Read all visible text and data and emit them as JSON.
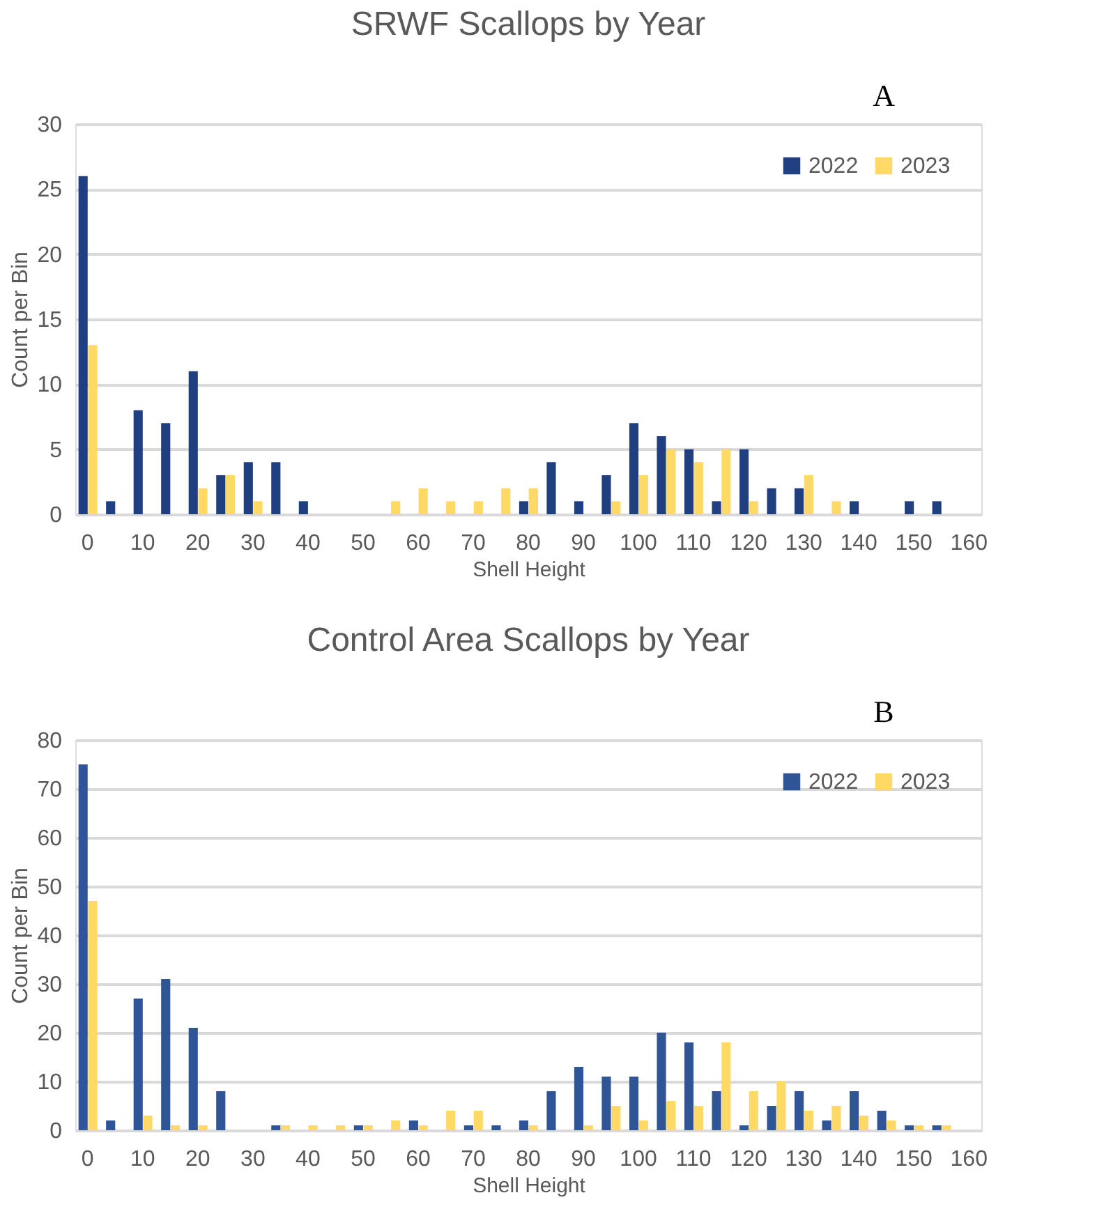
{
  "chart_data": [
    {
      "type": "bar",
      "title": "SRWF Scallops by Year",
      "xlabel": "Shell Height",
      "ylabel": "Count per Bin",
      "categories": [
        "0",
        null,
        "10",
        null,
        "20",
        null,
        "30",
        null,
        "40",
        null,
        "50",
        null,
        "60",
        null,
        "70",
        null,
        "80",
        null,
        "90",
        null,
        "100",
        null,
        "110",
        null,
        "120",
        null,
        "130",
        null,
        "140",
        null,
        "150",
        null,
        "160"
      ],
      "series": [
        {
          "name": "2022",
          "color": "#203f80",
          "values": [
            26,
            1,
            8,
            7,
            11,
            3,
            4,
            4,
            1,
            0,
            0,
            0,
            0,
            0,
            0,
            0,
            1,
            4,
            1,
            3,
            7,
            6,
            5,
            1,
            5,
            2,
            2,
            0,
            1,
            0,
            1,
            1,
            0
          ]
        },
        {
          "name": "2023",
          "color": "#ffd966",
          "values": [
            13,
            0,
            0,
            0,
            2,
            3,
            1,
            0,
            0,
            0,
            0,
            1,
            2,
            1,
            1,
            2,
            2,
            0,
            0,
            1,
            3,
            5,
            4,
            5,
            1,
            0,
            3,
            1,
            0,
            0,
            0,
            0,
            0
          ]
        }
      ],
      "ylim": [
        0,
        30
      ],
      "yticks": [
        0,
        5,
        10,
        15,
        20,
        25,
        30
      ],
      "grid": "y",
      "legend": "top right",
      "annotations": [
        "A"
      ]
    },
    {
      "type": "bar",
      "title": "Control Area Scallops by Year",
      "xlabel": "Shell Height",
      "ylabel": "Count per Bin",
      "categories": [
        "0",
        null,
        "10",
        null,
        "20",
        null,
        "30",
        null,
        "40",
        null,
        "50",
        null,
        "60",
        null,
        "70",
        null,
        "80",
        null,
        "90",
        null,
        "100",
        null,
        "110",
        null,
        "120",
        null,
        "130",
        null,
        "140",
        null,
        "150",
        null,
        "160"
      ],
      "series": [
        {
          "name": "2022",
          "color": "#2f5597",
          "values": [
            75,
            2,
            27,
            31,
            21,
            8,
            0,
            1,
            0,
            0,
            1,
            0,
            2,
            0,
            1,
            1,
            2,
            8,
            13,
            11,
            11,
            20,
            18,
            8,
            1,
            5,
            8,
            2,
            8,
            4,
            1,
            1,
            0
          ]
        },
        {
          "name": "2023",
          "color": "#ffd966",
          "values": [
            47,
            0,
            3,
            1,
            1,
            0,
            0,
            1,
            1,
            1,
            1,
            2,
            1,
            4,
            4,
            0,
            1,
            0,
            1,
            5,
            2,
            6,
            5,
            18,
            8,
            10,
            4,
            5,
            3,
            2,
            1,
            1,
            0
          ]
        }
      ],
      "ylim": [
        0,
        80
      ],
      "yticks": [
        0,
        10,
        20,
        30,
        40,
        50,
        60,
        70,
        80
      ],
      "grid": "y",
      "legend": "top right",
      "annotations": [
        "B"
      ]
    }
  ]
}
